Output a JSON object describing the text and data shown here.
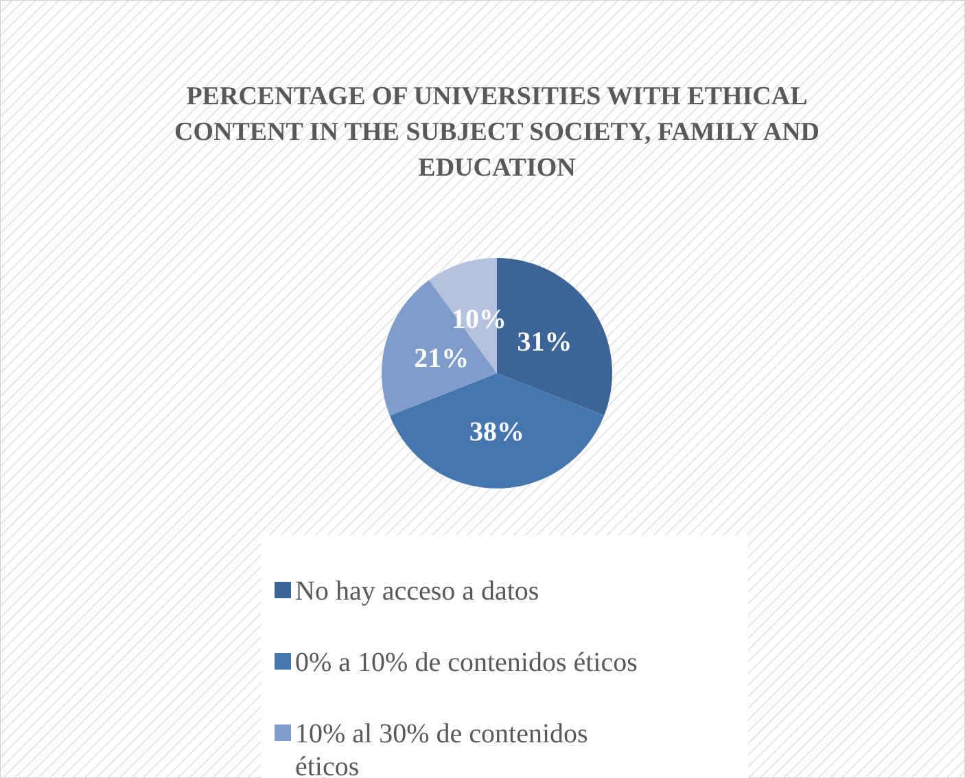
{
  "chart_data": {
    "type": "pie",
    "title": "PERCENTAGE OF UNIVERSITIES WITH ETHICAL CONTENT IN THE SUBJECT SOCIETY, FAMILY AND EDUCATION",
    "categories": [
      "No hay acceso a datos",
      "0% a 10% de contenidos éticos",
      "10% al 30% de contenidos éticos",
      null
    ],
    "values": [
      31,
      38,
      21,
      10
    ],
    "colors": [
      "#3d6496",
      "#4676b0",
      "#7f9ccb",
      "#b3c2de"
    ],
    "value_labels": [
      "31%",
      "38%",
      "21%",
      "10%"
    ],
    "legend": "bottom"
  }
}
